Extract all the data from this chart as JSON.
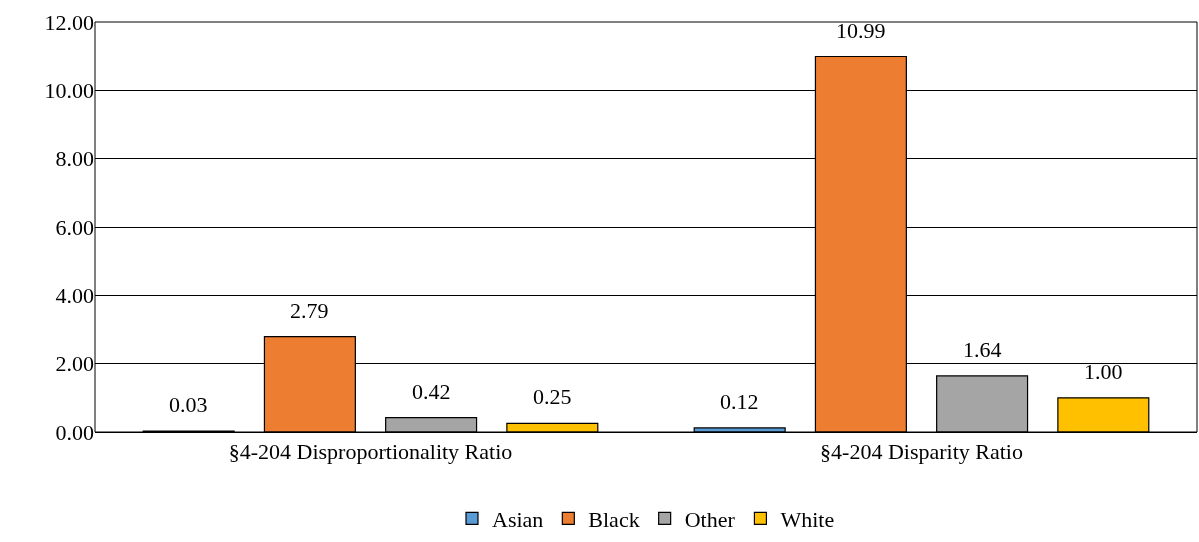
{
  "chart_data": {
    "type": "bar",
    "categories": [
      "§4-204 Disproportionality Ratio",
      "§4-204 Disparity Ratio"
    ],
    "series": [
      {
        "name": "Asian",
        "color": "#5b9bd5",
        "values": [
          0.03,
          0.12
        ],
        "value_labels": [
          "0.03",
          "0.12"
        ]
      },
      {
        "name": "Black",
        "color": "#ed7d31",
        "values": [
          2.79,
          10.99
        ],
        "value_labels": [
          "2.79",
          "10.99"
        ]
      },
      {
        "name": "Other",
        "color": "#a5a5a5",
        "values": [
          0.42,
          1.64
        ],
        "value_labels": [
          "0.42",
          "1.64"
        ]
      },
      {
        "name": "White",
        "color": "#ffc000",
        "values": [
          0.25,
          1.0
        ],
        "value_labels": [
          "0.25",
          "1.00"
        ]
      }
    ],
    "ylim": [
      0,
      12
    ],
    "yticks": [
      {
        "value": 0,
        "label": "0.00"
      },
      {
        "value": 2,
        "label": "2.00"
      },
      {
        "value": 4,
        "label": "4.00"
      },
      {
        "value": 6,
        "label": "6.00"
      },
      {
        "value": 8,
        "label": "8.00"
      },
      {
        "value": 10,
        "label": "10.00"
      },
      {
        "value": 12,
        "label": "12.00"
      }
    ],
    "grid": "y",
    "legend": "bottom"
  }
}
